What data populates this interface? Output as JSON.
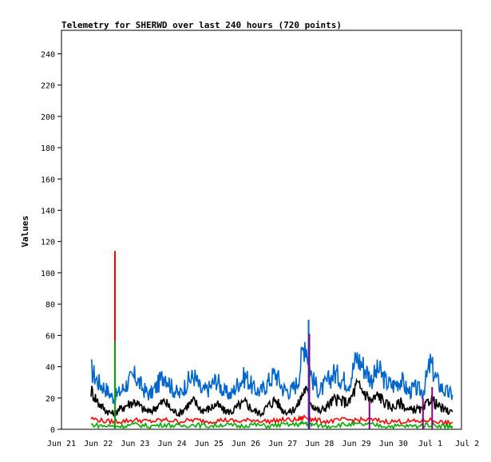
{
  "chart_data": {
    "type": "line",
    "title": "Telemetry for SHERWD over last 240 hours (720 points)",
    "ylabel": "Values",
    "xlabel": "",
    "ylim": [
      0,
      255
    ],
    "yticks": [
      0,
      20,
      40,
      60,
      80,
      100,
      120,
      140,
      160,
      180,
      200,
      220,
      240
    ],
    "x_start_label": "Jun 21",
    "x_end_label": "Jul 2",
    "xticks": [
      "Jun 21",
      "Jun 22",
      "Jun 23",
      "Jun 24",
      "Jun 25",
      "Jun 26",
      "Jun 27",
      "Jun 28",
      "Jun 29",
      "Jun 30",
      "Jul 1",
      "Jul 2"
    ],
    "grid": false,
    "legend": "none",
    "series": [
      {
        "color": "#0066cc",
        "x_days": [
          0.8,
          1.0,
          1.2,
          1.4,
          1.6,
          1.8,
          2.0,
          2.2,
          2.4,
          2.6,
          2.8,
          3.0,
          3.2,
          3.4,
          3.6,
          3.8,
          4.0,
          4.2,
          4.4,
          4.6,
          4.8,
          5.0,
          5.2,
          5.4,
          5.6,
          5.8,
          6.0,
          6.2,
          6.4,
          6.6,
          6.8,
          7.0,
          7.2,
          7.4,
          7.6,
          7.8,
          8.0,
          8.2,
          8.4,
          8.6,
          8.8,
          9.0,
          9.2,
          9.4,
          9.6,
          9.8,
          10.0,
          10.2,
          10.4,
          10.6
        ],
        "values": [
          38,
          30,
          26,
          20,
          24,
          30,
          34,
          26,
          22,
          28,
          36,
          26,
          22,
          30,
          34,
          24,
          26,
          32,
          24,
          22,
          30,
          34,
          26,
          24,
          30,
          36,
          26,
          24,
          30,
          58,
          32,
          24,
          30,
          36,
          32,
          30,
          46,
          40,
          32,
          38,
          30,
          28,
          32,
          24,
          26,
          24,
          42,
          30,
          24,
          22
        ]
      },
      {
        "color": "#000000",
        "x_days": [
          0.8,
          1.0,
          1.2,
          1.4,
          1.6,
          1.8,
          2.0,
          2.2,
          2.4,
          2.6,
          2.8,
          3.0,
          3.2,
          3.4,
          3.6,
          3.8,
          4.0,
          4.2,
          4.4,
          4.6,
          4.8,
          5.0,
          5.2,
          5.4,
          5.6,
          5.8,
          6.0,
          6.2,
          6.4,
          6.6,
          6.8,
          7.0,
          7.2,
          7.4,
          7.6,
          7.8,
          8.0,
          8.2,
          8.4,
          8.6,
          8.8,
          9.0,
          9.2,
          9.4,
          9.6,
          9.8,
          10.0,
          10.2,
          10.4,
          10.6
        ],
        "values": [
          25,
          17,
          12,
          10,
          13,
          16,
          18,
          13,
          11,
          15,
          18,
          12,
          10,
          15,
          18,
          12,
          13,
          16,
          12,
          11,
          15,
          17,
          12,
          10,
          15,
          19,
          12,
          11,
          15,
          26,
          16,
          11,
          15,
          19,
          18,
          17,
          28,
          24,
          18,
          22,
          16,
          14,
          17,
          12,
          13,
          12,
          20,
          15,
          12,
          11
        ]
      },
      {
        "color": "#ff0000",
        "x_days": [
          0.8,
          1.2,
          1.6,
          2.0,
          2.4,
          2.8,
          3.2,
          3.6,
          4.0,
          4.4,
          4.8,
          5.2,
          5.6,
          6.0,
          6.4,
          6.6,
          6.8,
          7.2,
          7.6,
          8.0,
          8.4,
          8.8,
          9.2,
          9.6,
          10.0,
          10.4,
          10.6
        ],
        "values": [
          7,
          5,
          5,
          6,
          5,
          6,
          5,
          6,
          5,
          6,
          5,
          6,
          5,
          6,
          6,
          8,
          6,
          5,
          6,
          6,
          6,
          5,
          5,
          5,
          6,
          4,
          4
        ]
      },
      {
        "color": "#00aa00",
        "x_days": [
          0.8,
          1.2,
          1.6,
          2.0,
          2.4,
          2.8,
          3.2,
          3.6,
          4.0,
          4.4,
          4.8,
          5.2,
          5.6,
          6.0,
          6.4,
          6.6,
          6.8,
          7.2,
          7.6,
          8.0,
          8.4,
          8.8,
          9.2,
          9.6,
          10.0,
          10.4,
          10.6
        ],
        "values": [
          3,
          2,
          2,
          3,
          2,
          3,
          2,
          3,
          2,
          3,
          2,
          3,
          2,
          3,
          3,
          4,
          3,
          2,
          3,
          3,
          3,
          2,
          2,
          2,
          3,
          2,
          2
        ]
      }
    ],
    "spikes": [
      {
        "color": "#ff0000",
        "x_day": 1.45,
        "value": 114
      },
      {
        "color": "#00aa00",
        "x_day": 1.45,
        "value": 56
      },
      {
        "color": "#0066cc",
        "x_day": 6.7,
        "value": 70
      },
      {
        "color": "#800080",
        "x_day": 6.72,
        "value": 61
      },
      {
        "color": "#800080",
        "x_day": 8.35,
        "value": 18
      },
      {
        "color": "#800080",
        "x_day": 9.8,
        "value": 20
      },
      {
        "color": "#800080",
        "x_day": 10.05,
        "value": 27
      }
    ]
  }
}
